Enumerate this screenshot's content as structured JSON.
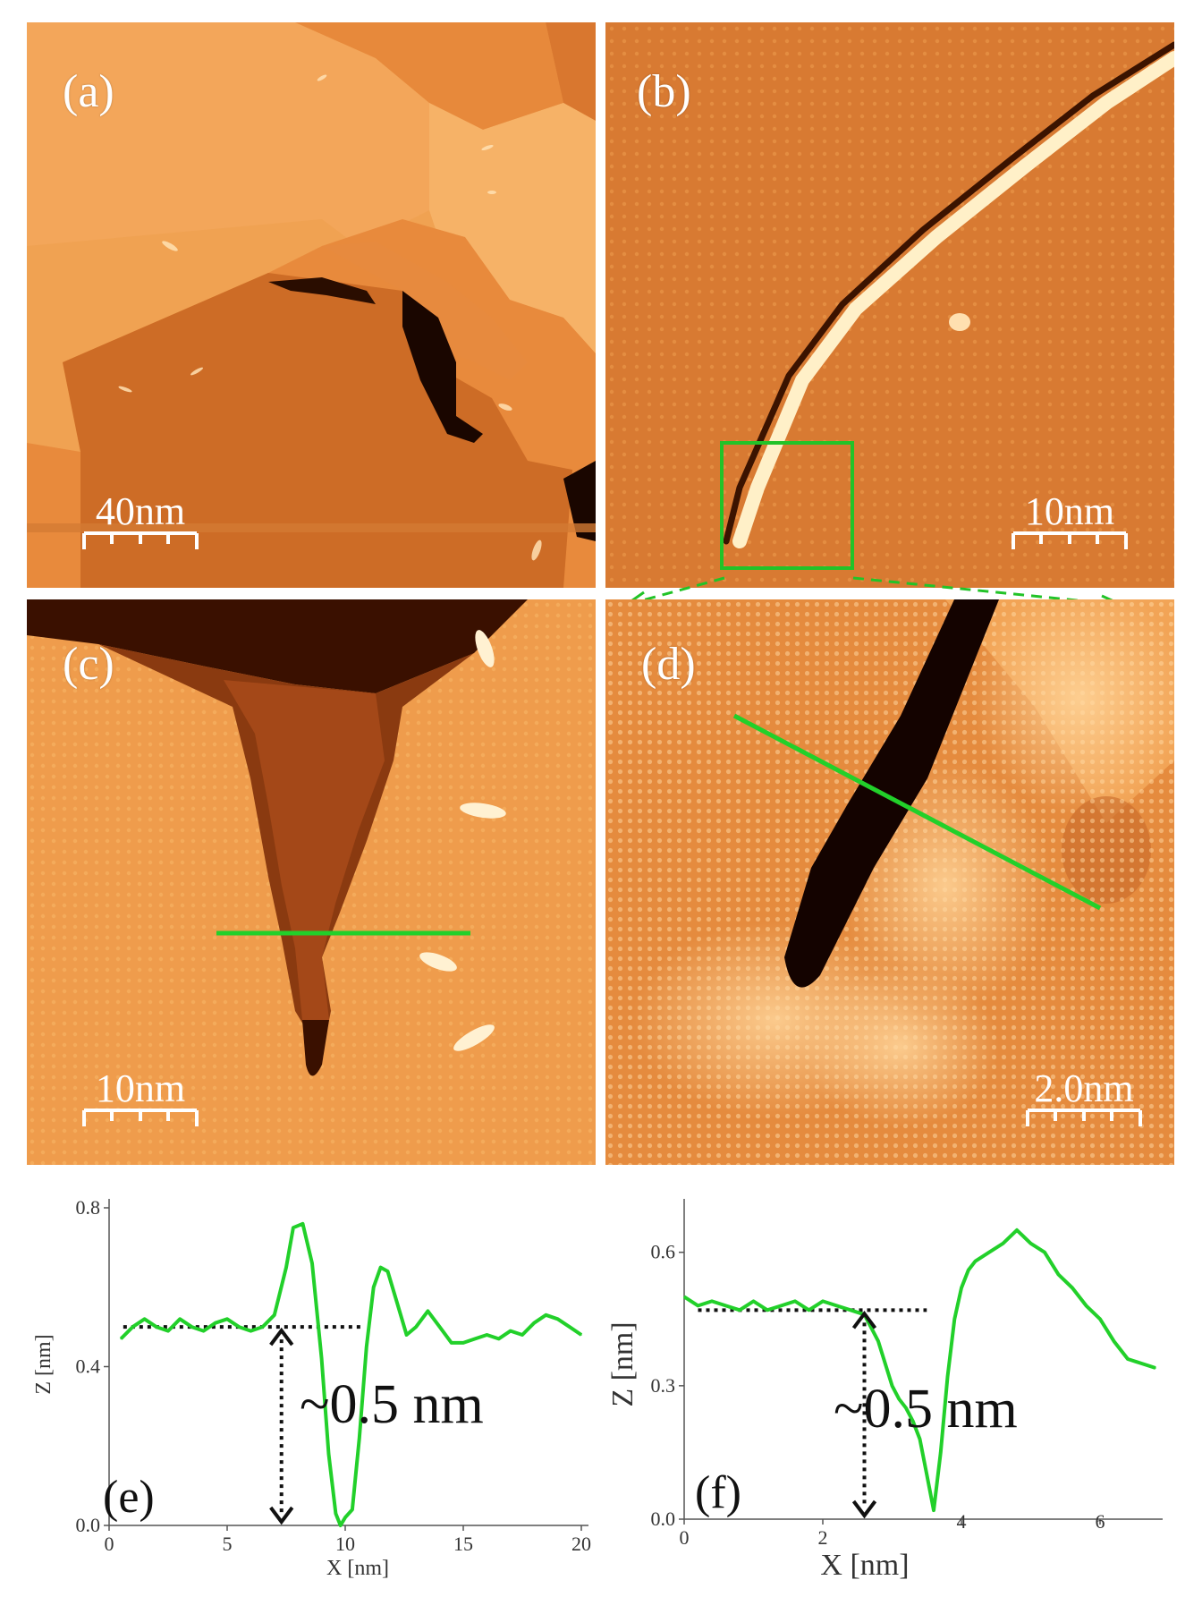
{
  "panels": {
    "a": {
      "label": "(a)",
      "scale_bar": "40nm"
    },
    "b": {
      "label": "(b)",
      "scale_bar": "10nm"
    },
    "c": {
      "label": "(c)",
      "scale_bar": "10nm"
    },
    "d": {
      "label": "(d)",
      "scale_bar": "2.0nm"
    }
  },
  "colors": {
    "terrace_light": "#f7b060",
    "terrace_mid": "#e88a3c",
    "terrace_dark": "#c96824",
    "groove": "#1a0600",
    "profile_line": "#22d02a"
  },
  "chart_data": [
    {
      "type": "line",
      "panel_label": "(e)",
      "xlabel": "X [nm]",
      "ylabel": "Z [nm]",
      "xlim": [
        0,
        20
      ],
      "ylim": [
        0,
        0.8
      ],
      "xticks": [
        0,
        5,
        10,
        15,
        20
      ],
      "yticks": [
        "0.0",
        "0.4",
        "0.8"
      ],
      "annotation": "~0.5 nm",
      "reference_level": 0.5,
      "depth_arrow_x": 7.3,
      "series": [
        {
          "x": [
            0.5,
            1,
            1.5,
            2,
            2.5,
            3,
            3.5,
            4,
            4.5,
            5,
            5.5,
            6,
            6.5,
            7,
            7.5,
            7.8,
            8.2,
            8.6,
            9,
            9.3,
            9.6,
            9.8,
            10,
            10.3,
            10.6,
            10.9,
            11.2,
            11.5,
            11.8,
            12.2,
            12.6,
            13,
            13.5,
            14,
            14.5,
            15,
            15.5,
            16,
            16.5,
            17,
            17.5,
            18,
            18.5,
            19,
            19.5,
            20
          ],
          "y": [
            0.47,
            0.5,
            0.52,
            0.5,
            0.49,
            0.52,
            0.5,
            0.49,
            0.51,
            0.52,
            0.5,
            0.49,
            0.5,
            0.53,
            0.65,
            0.75,
            0.76,
            0.66,
            0.42,
            0.18,
            0.03,
            0.0,
            0.02,
            0.04,
            0.22,
            0.45,
            0.6,
            0.65,
            0.64,
            0.56,
            0.48,
            0.5,
            0.54,
            0.5,
            0.46,
            0.46,
            0.47,
            0.48,
            0.47,
            0.49,
            0.48,
            0.51,
            0.53,
            0.52,
            0.5,
            0.48
          ]
        }
      ]
    },
    {
      "type": "line",
      "panel_label": "(f)",
      "xlabel": "X [nm]",
      "ylabel": "Z [nm]",
      "xlim": [
        0,
        6.8
      ],
      "ylim": [
        0,
        0.7
      ],
      "xticks": [
        0,
        2,
        4,
        6
      ],
      "yticks": [
        "0.0",
        "0.3",
        "0.6"
      ],
      "annotation": "~0.5 nm",
      "reference_level": 0.47,
      "depth_arrow_x": 2.6,
      "series": [
        {
          "x": [
            0,
            0.2,
            0.4,
            0.6,
            0.8,
            1,
            1.2,
            1.4,
            1.6,
            1.8,
            2,
            2.2,
            2.4,
            2.6,
            2.8,
            3,
            3.1,
            3.2,
            3.3,
            3.4,
            3.5,
            3.6,
            3.7,
            3.8,
            3.9,
            4,
            4.1,
            4.2,
            4.4,
            4.6,
            4.8,
            5,
            5.2,
            5.4,
            5.6,
            5.8,
            6,
            6.2,
            6.4,
            6.6,
            6.8
          ],
          "y": [
            0.5,
            0.48,
            0.49,
            0.48,
            0.47,
            0.49,
            0.47,
            0.48,
            0.49,
            0.47,
            0.49,
            0.48,
            0.47,
            0.46,
            0.4,
            0.3,
            0.27,
            0.25,
            0.22,
            0.18,
            0.1,
            0.02,
            0.15,
            0.32,
            0.45,
            0.52,
            0.56,
            0.58,
            0.6,
            0.62,
            0.65,
            0.62,
            0.6,
            0.55,
            0.52,
            0.48,
            0.45,
            0.4,
            0.36,
            0.35,
            0.34
          ]
        }
      ]
    }
  ]
}
